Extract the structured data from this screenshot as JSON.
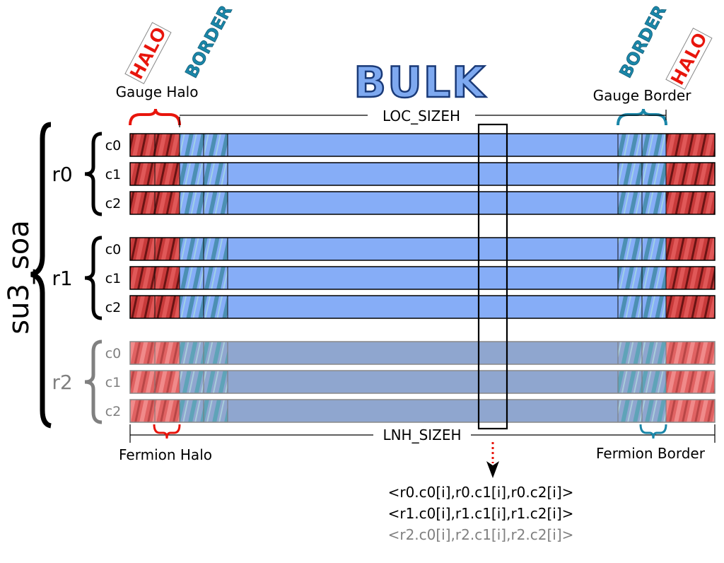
{
  "title": "BULK",
  "struct_label": "su3_soa",
  "tags": {
    "halo_left": "HALO",
    "border_left": "BORDER",
    "border_right": "BORDER",
    "halo_right": "HALO"
  },
  "labels": {
    "gauge_halo": "Gauge Halo",
    "gauge_border": "Gauge Border",
    "loc_sizeh": "LOC_SIZEH",
    "lnh_sizeh": "LNH_SIZEH",
    "fermion_halo": "Fermion Halo",
    "fermion_border": "Fermion Border"
  },
  "rows": [
    {
      "name": "r0",
      "faded": false,
      "components": [
        "c0",
        "c1",
        "c2"
      ]
    },
    {
      "name": "r1",
      "faded": false,
      "components": [
        "c0",
        "c1",
        "c2"
      ]
    },
    {
      "name": "r2",
      "faded": true,
      "components": [
        "c0",
        "c1",
        "c2"
      ]
    }
  ],
  "access": [
    {
      "text": "<r0.c0[i],r0.c1[i],r0.c2[i]>",
      "faded": false
    },
    {
      "text": "<r1.c0[i],r1.c1[i],r1.c2[i]>",
      "faded": false
    },
    {
      "text": "<r2.c0[i],r2.c1[i],r2.c2[i]>",
      "faded": true
    }
  ],
  "colors": {
    "bulk": "#86adf7",
    "bulk_faded": "#8fa6cf",
    "halo": "#c83a3a",
    "halo_faded": "#e06262",
    "border": "#4c8fb3",
    "title_fill": "#7ea9f0",
    "halo_brace": "#e8150c",
    "border_brace": "#1a86a8",
    "faded_text": "#808080"
  }
}
